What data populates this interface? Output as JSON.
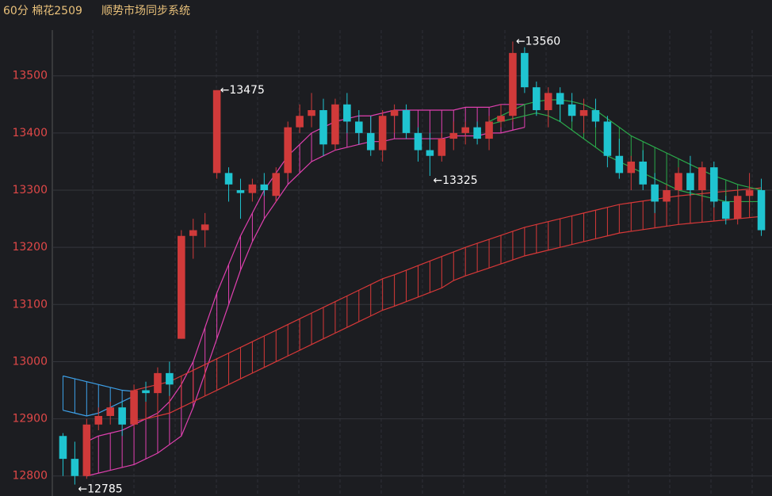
{
  "chart_data": {
    "type": "candlestick",
    "title": "60分 棉花2509",
    "subtitle": "顺势市场同步系统",
    "ylim": [
      12765,
      13580
    ],
    "yticks": [
      12800,
      12900,
      13000,
      13100,
      13200,
      13300,
      13400,
      13500
    ],
    "grid": true,
    "up_color": "#d03a3a",
    "down_color": "#1fc4d0",
    "candles": [
      [
        12870,
        12875,
        12800,
        12830
      ],
      [
        12830,
        12860,
        12785,
        12800
      ],
      [
        12800,
        12900,
        12795,
        12890
      ],
      [
        12890,
        12920,
        12880,
        12905
      ],
      [
        12905,
        12930,
        12890,
        12920
      ],
      [
        12920,
        12930,
        12870,
        12890
      ],
      [
        12890,
        12960,
        12885,
        12950
      ],
      [
        12950,
        12965,
        12930,
        12945
      ],
      [
        12945,
        12990,
        12940,
        12980
      ],
      [
        12980,
        13000,
        12940,
        12960
      ],
      [
        13040,
        13230,
        13040,
        13220
      ],
      [
        13220,
        13250,
        13180,
        13230
      ],
      [
        13230,
        13260,
        13200,
        13240
      ],
      [
        13330,
        13475,
        13320,
        13475
      ],
      [
        13330,
        13340,
        13280,
        13310
      ],
      [
        13300,
        13320,
        13250,
        13295
      ],
      [
        13295,
        13320,
        13280,
        13310
      ],
      [
        13310,
        13330,
        13290,
        13300
      ],
      [
        13290,
        13340,
        13280,
        13330
      ],
      [
        13330,
        13420,
        13320,
        13410
      ],
      [
        13410,
        13450,
        13400,
        13430
      ],
      [
        13430,
        13470,
        13410,
        13440
      ],
      [
        13440,
        13460,
        13360,
        13380
      ],
      [
        13380,
        13460,
        13370,
        13450
      ],
      [
        13450,
        13470,
        13400,
        13420
      ],
      [
        13420,
        13440,
        13380,
        13400
      ],
      [
        13400,
        13430,
        13360,
        13370
      ],
      [
        13370,
        13440,
        13350,
        13430
      ],
      [
        13430,
        13450,
        13400,
        13440
      ],
      [
        13440,
        13450,
        13390,
        13400
      ],
      [
        13400,
        13410,
        13350,
        13370
      ],
      [
        13370,
        13400,
        13325,
        13360
      ],
      [
        13360,
        13400,
        13350,
        13390
      ],
      [
        13390,
        13420,
        13370,
        13400
      ],
      [
        13400,
        13420,
        13380,
        13410
      ],
      [
        13410,
        13420,
        13380,
        13390
      ],
      [
        13390,
        13430,
        13370,
        13420
      ],
      [
        13420,
        13450,
        13410,
        13430
      ],
      [
        13430,
        13560,
        13420,
        13540
      ],
      [
        13540,
        13550,
        13470,
        13480
      ],
      [
        13480,
        13490,
        13430,
        13440
      ],
      [
        13440,
        13480,
        13410,
        13470
      ],
      [
        13470,
        13480,
        13420,
        13450
      ],
      [
        13450,
        13470,
        13420,
        13430
      ],
      [
        13430,
        13460,
        13400,
        13440
      ],
      [
        13440,
        13460,
        13410,
        13420
      ],
      [
        13420,
        13430,
        13340,
        13360
      ],
      [
        13360,
        13390,
        13320,
        13330
      ],
      [
        13330,
        13360,
        13300,
        13350
      ],
      [
        13350,
        13370,
        13300,
        13310
      ],
      [
        13310,
        13330,
        13260,
        13280
      ],
      [
        13280,
        13310,
        13270,
        13300
      ],
      [
        13300,
        13340,
        13280,
        13330
      ],
      [
        13330,
        13360,
        13290,
        13300
      ],
      [
        13300,
        13350,
        13280,
        13340
      ],
      [
        13340,
        13350,
        13270,
        13280
      ],
      [
        13280,
        13290,
        13240,
        13250
      ],
      [
        13250,
        13300,
        13240,
        13290
      ],
      [
        13290,
        13330,
        13270,
        13300
      ],
      [
        13300,
        13320,
        13220,
        13230
      ]
    ],
    "bands": [
      {
        "color": "#3da0e8",
        "upper": [
          12975,
          12970,
          12965,
          12960,
          12955,
          12950,
          12948,
          null,
          null,
          null,
          null,
          null,
          null,
          null,
          null,
          null,
          null,
          null,
          null,
          null,
          null,
          null,
          null,
          null,
          null,
          null,
          null,
          null,
          null,
          null,
          null,
          null,
          null,
          null,
          null,
          null,
          null,
          null,
          null,
          null,
          null,
          null,
          null,
          null,
          null,
          null,
          null,
          null,
          null,
          null,
          null,
          null,
          null,
          null,
          null,
          null,
          null,
          null,
          null,
          null
        ],
        "lower": [
          12915,
          12910,
          12905,
          12910,
          12920,
          12930,
          12940,
          null,
          null,
          null,
          null,
          null,
          null,
          null,
          null,
          null,
          null,
          null,
          null,
          null,
          null,
          null,
          null,
          null,
          null,
          null,
          null,
          null,
          null,
          null,
          null,
          null,
          null,
          null,
          null,
          null,
          null,
          null,
          null,
          null,
          null,
          null,
          null,
          null,
          null,
          null,
          null,
          null,
          null,
          null,
          null,
          null,
          null,
          null,
          null,
          null,
          null,
          null,
          null,
          null
        ]
      },
      {
        "color": "#e040b0",
        "upper": [
          null,
          null,
          12860,
          12870,
          12875,
          12880,
          12890,
          12900,
          12910,
          12930,
          12960,
          13000,
          13060,
          13120,
          13170,
          13220,
          13260,
          13300,
          13330,
          13360,
          13380,
          13400,
          13410,
          13420,
          13425,
          13430,
          13430,
          13435,
          13440,
          13440,
          13440,
          13440,
          13440,
          13440,
          13445,
          13445,
          13445,
          13450,
          13450,
          13450,
          null,
          null,
          null,
          null,
          null,
          null,
          null,
          null,
          null,
          null,
          null,
          null,
          null,
          null,
          null,
          null,
          null,
          null,
          null,
          null
        ],
        "lower": [
          null,
          null,
          12800,
          12805,
          12810,
          12815,
          12820,
          12830,
          12840,
          12855,
          12870,
          12920,
          12980,
          13040,
          13100,
          13160,
          13210,
          13250,
          13280,
          13310,
          13330,
          13350,
          13360,
          13370,
          13375,
          13380,
          13385,
          13385,
          13390,
          13390,
          13390,
          13390,
          13390,
          13395,
          13395,
          13395,
          13400,
          13400,
          13405,
          13410,
          null,
          null,
          null,
          null,
          null,
          null,
          null,
          null,
          null,
          null,
          null,
          null,
          null,
          null,
          null,
          null,
          null,
          null,
          null,
          null
        ]
      },
      {
        "color": "#d83838",
        "upper": [
          null,
          null,
          null,
          null,
          null,
          null,
          12950,
          12955,
          12960,
          12965,
          12975,
          12985,
          12995,
          13005,
          13015,
          13025,
          13035,
          13045,
          13055,
          13065,
          13075,
          13085,
          13095,
          13105,
          13115,
          13125,
          13135,
          13145,
          13152,
          13160,
          13168,
          13176,
          13184,
          13192,
          13200,
          13207,
          13214,
          13221,
          13228,
          13235,
          13240,
          13245,
          13250,
          13255,
          13260,
          13265,
          13270,
          13275,
          13278,
          13281,
          13284,
          13287,
          13290,
          13292,
          13294,
          13296,
          13298,
          13300,
          13302,
          13304
        ],
        "lower": [
          null,
          null,
          null,
          null,
          null,
          null,
          12895,
          12900,
          12905,
          12910,
          12920,
          12930,
          12940,
          12950,
          12960,
          12970,
          12980,
          12990,
          13000,
          13010,
          13020,
          13030,
          13040,
          13050,
          13060,
          13070,
          13080,
          13090,
          13097,
          13105,
          13113,
          13121,
          13129,
          13142,
          13150,
          13157,
          13164,
          13171,
          13178,
          13185,
          13190,
          13195,
          13200,
          13205,
          13210,
          13215,
          13220,
          13225,
          13228,
          13231,
          13234,
          13237,
          13240,
          13242,
          13244,
          13246,
          13248,
          13250,
          13252,
          13254
        ]
      },
      {
        "color": "#2aa84a",
        "upper": [
          null,
          null,
          null,
          null,
          null,
          null,
          null,
          null,
          null,
          null,
          null,
          null,
          null,
          null,
          null,
          null,
          null,
          null,
          null,
          null,
          null,
          null,
          null,
          null,
          null,
          null,
          null,
          null,
          null,
          null,
          null,
          null,
          null,
          null,
          null,
          null,
          13420,
          13430,
          13440,
          13450,
          13455,
          13458,
          13458,
          13455,
          13450,
          13440,
          13425,
          13410,
          13395,
          13385,
          13375,
          13365,
          13355,
          13345,
          13335,
          13325,
          13318,
          13310,
          13305,
          13300
        ],
        "lower": [
          null,
          null,
          null,
          null,
          null,
          null,
          null,
          null,
          null,
          null,
          null,
          null,
          null,
          null,
          null,
          null,
          null,
          null,
          null,
          null,
          null,
          null,
          null,
          null,
          null,
          null,
          null,
          null,
          null,
          null,
          null,
          null,
          null,
          null,
          null,
          null,
          13415,
          13420,
          13425,
          13430,
          13435,
          13430,
          13420,
          13405,
          13390,
          13375,
          13360,
          13350,
          13340,
          13330,
          13320,
          13310,
          13300,
          13295,
          13290,
          13285,
          13280,
          13280,
          13280,
          13280
        ]
      }
    ],
    "annotations": [
      {
        "text": "←13560",
        "value": 13560
      },
      {
        "text": "←13475",
        "value": 13475
      },
      {
        "text": "←13325",
        "value": 13325
      },
      {
        "text": "←12785",
        "value": 12785
      }
    ]
  }
}
